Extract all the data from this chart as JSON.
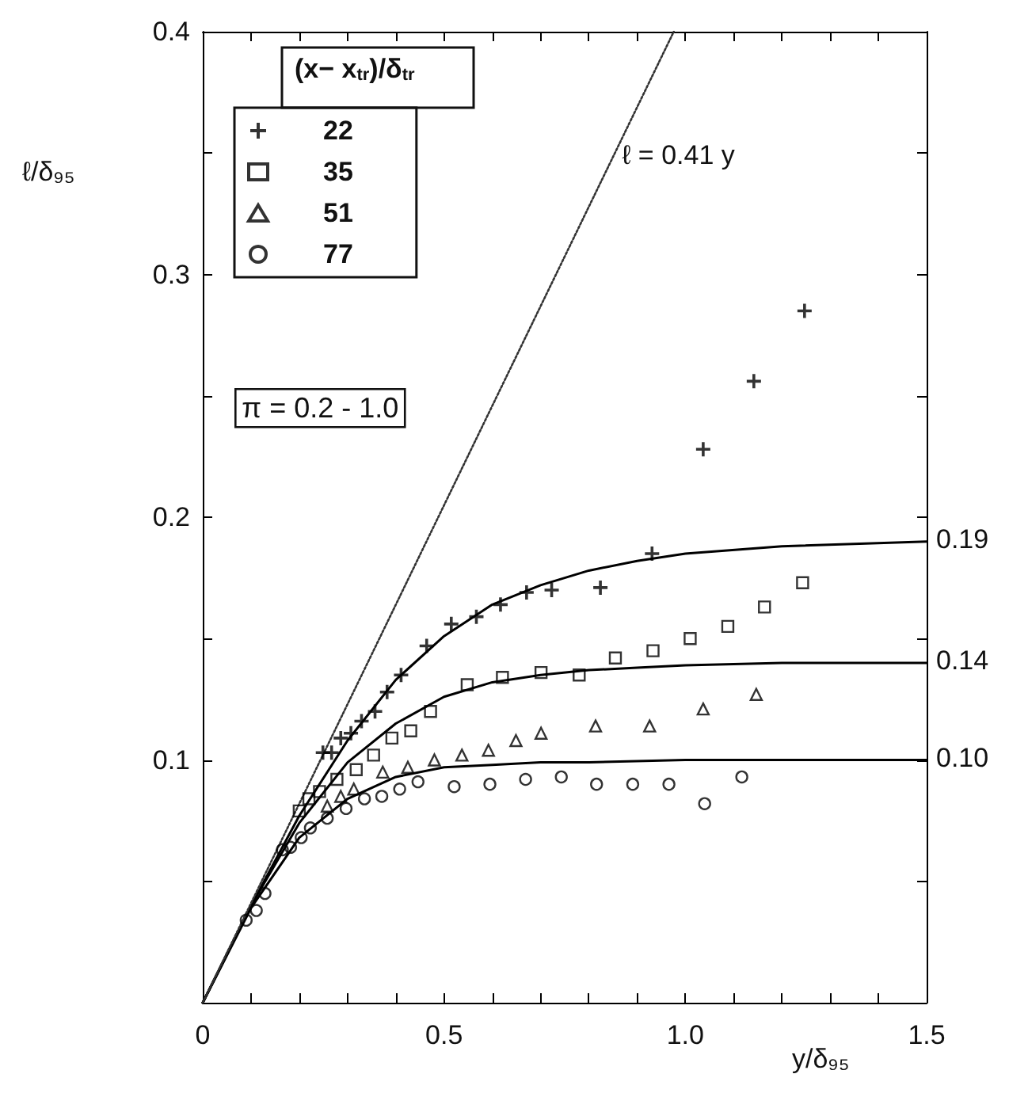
{
  "chart_data": {
    "type": "scatter",
    "xlabel": "y/δ₉₅",
    "ylabel": "ℓ/δ₉₅",
    "legend_title": "(x− x$_{tr}$)/δ$_{tr}$",
    "legend": "top left",
    "xlim": [
      0,
      1.5
    ],
    "ylim": [
      0,
      0.4
    ],
    "xticks": [
      0,
      {
        "value": 0.1,
        "label": null
      },
      {
        "value": 0.2,
        "label": null
      },
      {
        "value": 0.3,
        "label": null
      },
      {
        "value": 0.4,
        "label": null
      },
      0.5,
      {
        "value": 0.6,
        "label": null
      },
      {
        "value": 0.7,
        "label": null
      },
      {
        "value": 0.8,
        "label": null
      },
      {
        "value": 0.9,
        "label": null
      },
      {
        "value": 1,
        "label": "1.0"
      },
      {
        "value": 1.1,
        "label": null
      },
      {
        "value": 1.2,
        "label": null
      },
      {
        "value": 1.3,
        "label": null
      },
      {
        "value": 1.4,
        "label": null
      },
      1.5
    ],
    "yticks": [
      {
        "value": 0,
        "label": null
      },
      {
        "value": 0.05,
        "label": null
      },
      0.1,
      {
        "value": 0.15,
        "label": null
      },
      0.2,
      {
        "value": 0.25,
        "label": null
      },
      0.3,
      {
        "value": 0.35,
        "label": null
      },
      0.4
    ],
    "annotations": [
      "π = 0.2 - 1.0",
      "ℓ = 0.41 y",
      "0.19",
      "0.14",
      "0.10"
    ],
    "series": [
      {
        "name": "22",
        "marker": "cross",
        "color": "#000000",
        "x": [
          0.249,
          0.267,
          0.286,
          0.307,
          0.329,
          0.357,
          0.382,
          0.411,
          0.464,
          0.515,
          0.567,
          0.617,
          0.671,
          0.723,
          0.824,
          0.931,
          1.037,
          1.142,
          1.247
        ],
        "values": [
          0.103,
          0.103,
          0.109,
          0.111,
          0.116,
          0.12,
          0.128,
          0.135,
          0.147,
          0.156,
          0.159,
          0.164,
          0.169,
          0.17,
          0.171,
          0.185,
          0.228,
          0.256,
          0.285
        ]
      },
      {
        "name": "35",
        "marker": "square",
        "color": "#000000",
        "x": [
          0.2,
          0.22,
          0.242,
          0.278,
          0.318,
          0.354,
          0.392,
          0.431,
          0.472,
          0.548,
          0.621,
          0.701,
          0.78,
          0.855,
          0.933,
          1.01,
          1.088,
          1.164,
          1.243
        ],
        "values": [
          0.079,
          0.084,
          0.087,
          0.092,
          0.096,
          0.102,
          0.109,
          0.112,
          0.12,
          0.131,
          0.134,
          0.136,
          0.135,
          0.142,
          0.145,
          0.15,
          0.155,
          0.163,
          0.173
        ]
      },
      {
        "name": "51",
        "marker": "triangle",
        "color": "#000000",
        "x": [
          0.258,
          0.286,
          0.313,
          0.373,
          0.425,
          0.48,
          0.537,
          0.592,
          0.649,
          0.701,
          0.814,
          0.926,
          1.037,
          1.147
        ],
        "values": [
          0.081,
          0.085,
          0.088,
          0.095,
          0.097,
          0.1,
          0.102,
          0.104,
          0.108,
          0.111,
          0.114,
          0.114,
          0.121,
          0.127
        ]
      },
      {
        "name": "77",
        "marker": "circle",
        "color": "#000000",
        "x": [
          0.09,
          0.111,
          0.129,
          0.165,
          0.182,
          0.204,
          0.223,
          0.258,
          0.297,
          0.335,
          0.371,
          0.408,
          0.446,
          0.521,
          0.595,
          0.669,
          0.743,
          0.816,
          0.891,
          0.966,
          1.04,
          1.117
        ],
        "values": [
          0.034,
          0.038,
          0.045,
          0.063,
          0.064,
          0.068,
          0.072,
          0.076,
          0.08,
          0.084,
          0.085,
          0.088,
          0.091,
          0.089,
          0.09,
          0.092,
          0.093,
          0.09,
          0.09,
          0.09,
          0.082,
          0.093
        ]
      },
      {
        "type": "line",
        "marker": "none",
        "line_style": "solid",
        "color": "#000000",
        "x": [
          0,
          0.1,
          0.2,
          0.3,
          0.4,
          0.5,
          0.6,
          0.7,
          0.8,
          0.9,
          1.0,
          1.2,
          1.5
        ],
        "values": [
          0,
          0.04,
          0.077,
          0.108,
          0.133,
          0.151,
          0.164,
          0.172,
          0.178,
          0.182,
          0.185,
          0.188,
          0.19
        ]
      },
      {
        "type": "line",
        "marker": "none",
        "line_style": "solid",
        "color": "#000000",
        "x": [
          0,
          0.1,
          0.2,
          0.3,
          0.4,
          0.5,
          0.6,
          0.7,
          0.8,
          0.9,
          1.0,
          1.2,
          1.5
        ],
        "values": [
          0,
          0.04,
          0.074,
          0.099,
          0.115,
          0.126,
          0.132,
          0.135,
          0.137,
          0.138,
          0.139,
          0.14,
          0.14
        ]
      },
      {
        "type": "line",
        "marker": "none",
        "line_style": "solid",
        "color": "#000000",
        "x": [
          0,
          0.1,
          0.2,
          0.3,
          0.4,
          0.5,
          0.6,
          0.7,
          0.8,
          1.0,
          1.5
        ],
        "values": [
          0,
          0.039,
          0.068,
          0.084,
          0.093,
          0.097,
          0.098,
          0.099,
          0.099,
          0.1,
          0.1
        ]
      },
      {
        "type": "line",
        "marker": "none",
        "line_style": "dotted",
        "color": "#333333",
        "x": [
          0,
          0.976
        ],
        "values": [
          0,
          0.4
        ]
      }
    ]
  }
}
